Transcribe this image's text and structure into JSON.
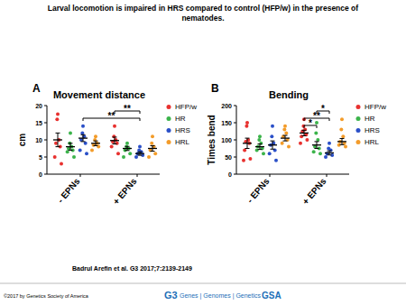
{
  "slide": {
    "title": [
      "Larval locomotion is impaired in HRS compared to control (HFP/w) in the presence of",
      "nematodes."
    ],
    "panels": [
      "A",
      "B"
    ],
    "citation": "Badrul Arefin et al. G3 2017;7:2139-2149",
    "copyright": "©2017 by Genetics Society of America",
    "logo": [
      "G3",
      "Genes | Genomes | Genetics",
      "GSA"
    ]
  },
  "chart_data": [
    {
      "type": "scatter",
      "title": "Movement distance",
      "y_label": "cm",
      "categories": [
        "- EPNs",
        "+ EPNs"
      ],
      "ylim": [
        0,
        20
      ],
      "yticks": [
        0,
        5,
        10,
        15,
        20
      ],
      "marker": "circle",
      "legend": "right",
      "series": [
        {
          "name": "HFP/w",
          "color": "#e8312f",
          "values": [
            [
              17.5,
              16,
              10,
              9,
              8,
              5,
              3
            ],
            [
              14,
              11,
              10,
              9.5,
              9,
              8,
              6
            ]
          ],
          "mean": [
            10,
            9.8
          ],
          "error": [
            2,
            1
          ]
        },
        {
          "name": "HR",
          "color": "#3cb44b",
          "values": [
            [
              12,
              9,
              8,
              7.5,
              7,
              6.5,
              5
            ],
            [
              9,
              8,
              7.5,
              7,
              6,
              5
            ]
          ],
          "mean": [
            8,
            7.5
          ],
          "error": [
            1,
            0.6
          ]
        },
        {
          "name": "HRS",
          "color": "#2b50c8",
          "values": [
            [
              14,
              12,
              11,
              10,
              9,
              7,
              6
            ],
            [
              8,
              7,
              6.5,
              6,
              5.5,
              5
            ]
          ],
          "mean": [
            10.5,
            6
          ],
          "error": [
            1,
            0.5
          ]
        },
        {
          "name": "HRL",
          "color": "#f39c2a",
          "values": [
            [
              11,
              10,
              9,
              8.5,
              8,
              7
            ],
            [
              11,
              9,
              8,
              7,
              6,
              5
            ]
          ],
          "mean": [
            9,
            7.5
          ],
          "error": [
            0.7,
            0.8
          ]
        }
      ],
      "annotations": [
        {
          "text": "**",
          "between": [
            [
              "+ EPNs",
              "HFP/w"
            ],
            [
              "+ EPNs",
              "HRS"
            ]
          ]
        },
        {
          "text": "**",
          "between": [
            [
              "- EPNs",
              "HRS"
            ],
            [
              "+ EPNs",
              "HRS"
            ]
          ]
        }
      ]
    },
    {
      "type": "scatter",
      "title": "Bending",
      "y_label": "Times bend",
      "categories": [
        "- EPNs",
        "+ EPNs"
      ],
      "ylim": [
        0,
        200
      ],
      "yticks": [
        0,
        50,
        100,
        150,
        200
      ],
      "marker": "circle",
      "legend": "right",
      "series": [
        {
          "name": "HFP/w",
          "color": "#e8312f",
          "values": [
            [
              150,
              140,
              100,
              95,
              90,
              70,
              45,
              40
            ],
            [
              160,
              140,
              130,
              125,
              115,
              110,
              100,
              90
            ]
          ],
          "mean": [
            90,
            120
          ],
          "error": [
            15,
            8
          ]
        },
        {
          "name": "HR",
          "color": "#3cb44b",
          "values": [
            [
              110,
              100,
              90,
              80,
              75,
              70,
              60
            ],
            [
              150,
              120,
              100,
              80,
              75,
              65,
              60
            ]
          ],
          "mean": [
            80,
            85
          ],
          "error": [
            8,
            10
          ]
        },
        {
          "name": "HRS",
          "color": "#2b50c8",
          "values": [
            [
              140,
              110,
              90,
              85,
              70,
              60,
              40
            ],
            [
              90,
              75,
              70,
              60,
              55,
              50
            ]
          ],
          "mean": [
            85,
            62
          ],
          "error": [
            12,
            6
          ]
        },
        {
          "name": "HRL",
          "color": "#f39c2a",
          "values": [
            [
              140,
              130,
              120,
              110,
              100,
              90,
              80
            ],
            [
              160,
              130,
              110,
              95,
              90,
              85,
              80
            ]
          ],
          "mean": [
            105,
            95
          ],
          "error": [
            8,
            9
          ]
        }
      ],
      "annotations": [
        {
          "text": "*",
          "between": [
            [
              "+ EPNs",
              "HR"
            ],
            [
              "+ EPNs",
              "HRS"
            ]
          ]
        },
        {
          "text": "**",
          "between": [
            [
              "+ EPNs",
              "HFP/w"
            ],
            [
              "+ EPNs",
              "HRS"
            ]
          ]
        },
        {
          "text": "*",
          "between": [
            [
              "+ EPNs",
              "HFP/w"
            ],
            [
              "+ EPNs",
              "HR"
            ]
          ]
        }
      ]
    }
  ]
}
